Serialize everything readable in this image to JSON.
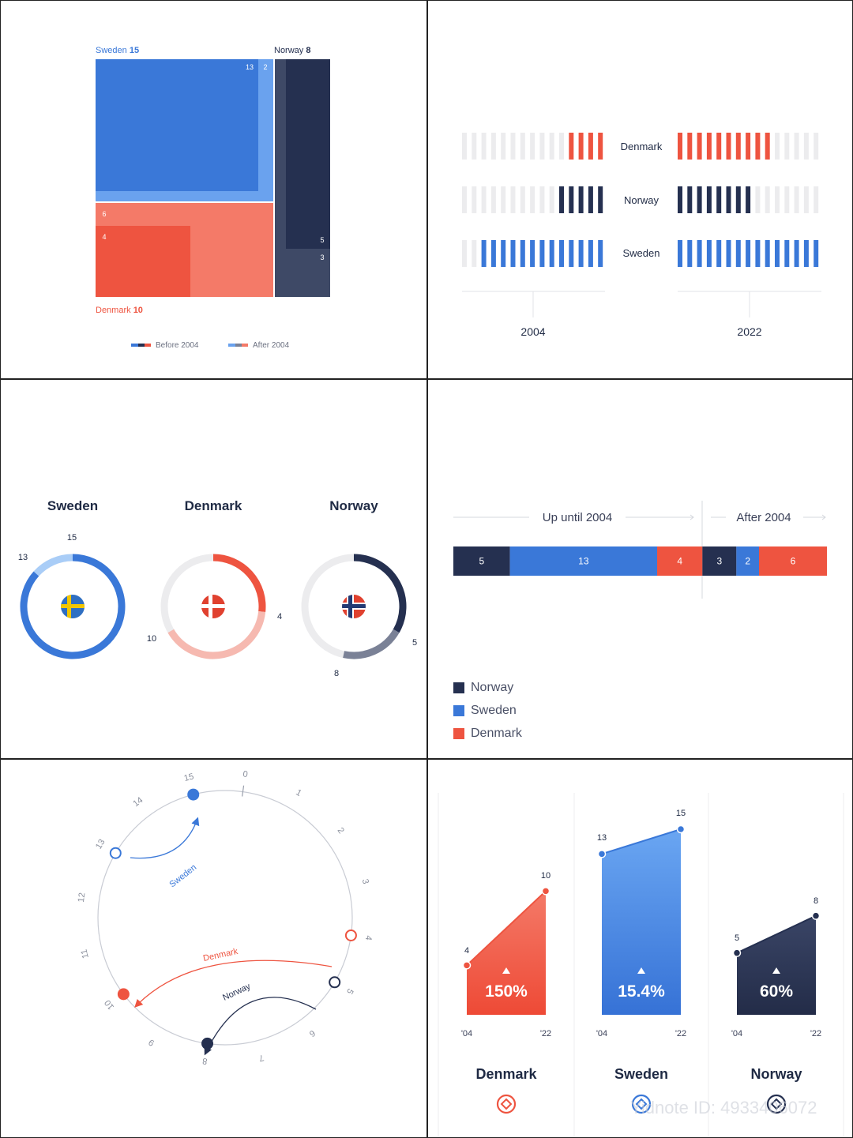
{
  "colors": {
    "sweden": "#3a78d8",
    "sweden_light": "#6aa2ee",
    "sweden_pale": "#a9cdf7",
    "denmark": "#ee5440",
    "denmark_light": "#f47a68",
    "denmark_pale": "#f6b9b0",
    "norway": "#253050",
    "norway_light": "#3e4966",
    "norway_grey": "#7a8196",
    "track": "#ececee"
  },
  "chart_data": [
    {
      "type": "treemap",
      "legend": [
        "Before 2004",
        "After 2004"
      ],
      "groups": [
        {
          "name": "Sweden",
          "total": 15,
          "before": 13,
          "after": 2
        },
        {
          "name": "Norway",
          "total": 8,
          "before": 5,
          "after": 3
        },
        {
          "name": "Denmark",
          "total": 10,
          "before": 4,
          "after": 6
        }
      ]
    },
    {
      "type": "bar",
      "x_labels": [
        "2004",
        "2022"
      ],
      "series": [
        {
          "name": "Denmark",
          "values": [
            4,
            10
          ]
        },
        {
          "name": "Norway",
          "values": [
            5,
            8
          ]
        },
        {
          "name": "Sweden",
          "values": [
            13,
            15
          ]
        }
      ],
      "max_units": 15
    },
    {
      "type": "pie",
      "donuts": [
        {
          "name": "Sweden",
          "start": 13,
          "end": 15
        },
        {
          "name": "Denmark",
          "start": 4,
          "end": 10
        },
        {
          "name": "Norway",
          "start": 5,
          "end": 8
        }
      ]
    },
    {
      "type": "bar",
      "sections": [
        "Up until 2004",
        "After 2004"
      ],
      "segments": [
        {
          "name": "Norway",
          "value": 5,
          "period": "Up until 2004"
        },
        {
          "name": "Sweden",
          "value": 13,
          "period": "Up until 2004"
        },
        {
          "name": "Denmark",
          "value": 4,
          "period": "Up until 2004"
        },
        {
          "name": "Norway",
          "value": 3,
          "period": "After 2004"
        },
        {
          "name": "Sweden",
          "value": 2,
          "period": "After 2004"
        },
        {
          "name": "Denmark",
          "value": 6,
          "period": "After 2004"
        }
      ],
      "legend": [
        "Norway",
        "Sweden",
        "Denmark"
      ]
    },
    {
      "type": "scatter",
      "dial_ticks": [
        "0",
        "1",
        "2",
        "3",
        "4",
        "5",
        "6",
        "7",
        "8",
        "9",
        "10",
        "11",
        "12",
        "13",
        "14",
        "15"
      ],
      "arrows": [
        {
          "name": "Sweden",
          "from": 13,
          "to": 15
        },
        {
          "name": "Denmark",
          "from": 4,
          "to": 10
        },
        {
          "name": "Norway",
          "from": 5,
          "to": 8
        }
      ]
    },
    {
      "type": "area",
      "x": [
        "'04",
        "'22"
      ],
      "series": [
        {
          "name": "Denmark",
          "values": [
            4,
            10
          ],
          "change": "150%"
        },
        {
          "name": "Sweden",
          "values": [
            13,
            15
          ],
          "change": "15.4%"
        },
        {
          "name": "Norway",
          "values": [
            5,
            8
          ],
          "change": "60%"
        }
      ]
    }
  ],
  "text": {
    "treemap": {
      "sweden_label": "Sweden",
      "sweden_total": "15",
      "norway_label": "Norway",
      "norway_total": "8",
      "denmark_label": "Denmark",
      "denmark_total": "10",
      "v13": "13",
      "v2": "2",
      "v5": "5",
      "v3": "3",
      "v6": "6",
      "v4": "4",
      "legend_before": "Before 2004",
      "legend_after": "After 2004"
    },
    "bars": {
      "denmark": "Denmark",
      "norway": "Norway",
      "sweden": "Sweden",
      "x2004": "2004",
      "x2022": "2022"
    },
    "donuts": {
      "sweden": "Sweden",
      "denmark": "Denmark",
      "norway": "Norway",
      "sw_13": "13",
      "sw_15": "15",
      "dk_4": "4",
      "dk_10": "10",
      "no_5": "5",
      "no_8": "8"
    },
    "stack": {
      "up_until": "Up until 2004",
      "after": "After 2004",
      "s5": "5",
      "s13": "13",
      "s4": "4",
      "s3": "3",
      "s2": "2",
      "s6": "6",
      "legend_norway": "Norway",
      "legend_sweden": "Sweden",
      "legend_denmark": "Denmark"
    },
    "dial": {
      "sweden": "Sweden",
      "denmark": "Denmark",
      "norway": "Norway"
    },
    "areas": {
      "denmark": "Denmark",
      "sweden": "Sweden",
      "norway": "Norway",
      "dk_pct": "150%",
      "sw_pct": "15.4%",
      "no_pct": "60%",
      "dk_4": "4",
      "dk_10": "10",
      "sw_13": "13",
      "sw_15": "15",
      "no_5": "5",
      "no_8": "8",
      "x04": "'04",
      "x22": "'22",
      "watermark": "Yidnote ID: 4933406072"
    }
  }
}
